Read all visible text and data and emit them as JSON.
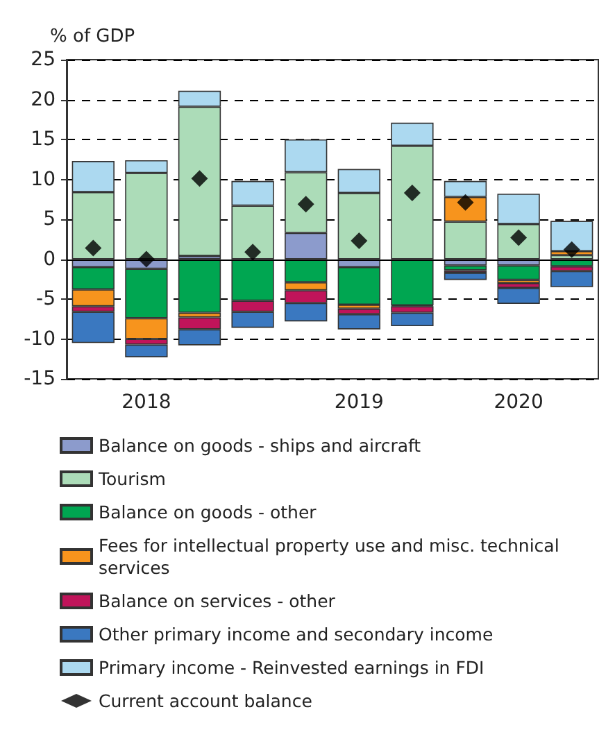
{
  "chart_data": {
    "type": "bar",
    "stacked": true,
    "ylabel": "% of GDP",
    "categories": [
      null,
      "2018",
      null,
      null,
      null,
      "2019",
      null,
      null,
      "2020",
      null
    ],
    "series": [
      {
        "name": "Balance on goods - ships and aircraft",
        "color": "#8c9bcc",
        "values": [
          -1.0,
          -1.2,
          0.4,
          0,
          3.3,
          -1.0,
          null,
          -0.8,
          -0.8,
          null
        ]
      },
      {
        "name": "Tourism",
        "color": "#acdcb8",
        "values": [
          8.4,
          10.8,
          18.7,
          6.7,
          7.6,
          8.3,
          14.2,
          4.7,
          4.4,
          0.5
        ]
      },
      {
        "name": "Balance on goods - other",
        "color": "#00a651",
        "values": [
          -2.8,
          -6.2,
          -6.7,
          -5.2,
          -2.9,
          -4.7,
          -5.8,
          -0.6,
          -1.8,
          -0.9
        ]
      },
      {
        "name": "Fees for intellectual property use and misc. technical services",
        "color": "#f7941d",
        "values": [
          -2.1,
          -2.6,
          -0.6,
          null,
          -1.0,
          -0.5,
          -0.1,
          3.1,
          -0.4,
          0.5
        ]
      },
      {
        "name": "Balance on services - other",
        "color": "#c0145a",
        "values": [
          -0.7,
          -0.7,
          -1.5,
          -1.4,
          -1.6,
          -0.7,
          -0.8,
          -0.3,
          -0.6,
          -0.6
        ]
      },
      {
        "name": "Other primary income and secondary income",
        "color": "#3a78c0",
        "values": [
          -3.9,
          -1.6,
          -2.0,
          -2.0,
          -2.3,
          -1.9,
          -1.7,
          -0.9,
          -2.0,
          -2.0
        ]
      },
      {
        "name": "Primary income - Reinvested earnings in FDI",
        "color": "#acd9f0",
        "values": [
          3.9,
          1.6,
          2.0,
          3.1,
          4.1,
          3.0,
          2.9,
          2.0,
          3.8,
          3.8
        ]
      },
      {
        "name": "Current account balance",
        "type": "scatter",
        "marker": "diamond",
        "color": "#000000",
        "values": [
          1.4,
          0.0,
          10.1,
          0.9,
          6.9,
          2.3,
          8.3,
          7.1,
          2.7,
          1.2
        ]
      }
    ],
    "ylim": [
      -15,
      25
    ],
    "yticks": [
      -15,
      -10,
      -5,
      0,
      5,
      10,
      15,
      20,
      25
    ],
    "grid": "y",
    "legend": "bottom",
    "ref_lines": [
      {
        "axis": "y",
        "value": 0,
        "color": "#000000"
      }
    ]
  }
}
